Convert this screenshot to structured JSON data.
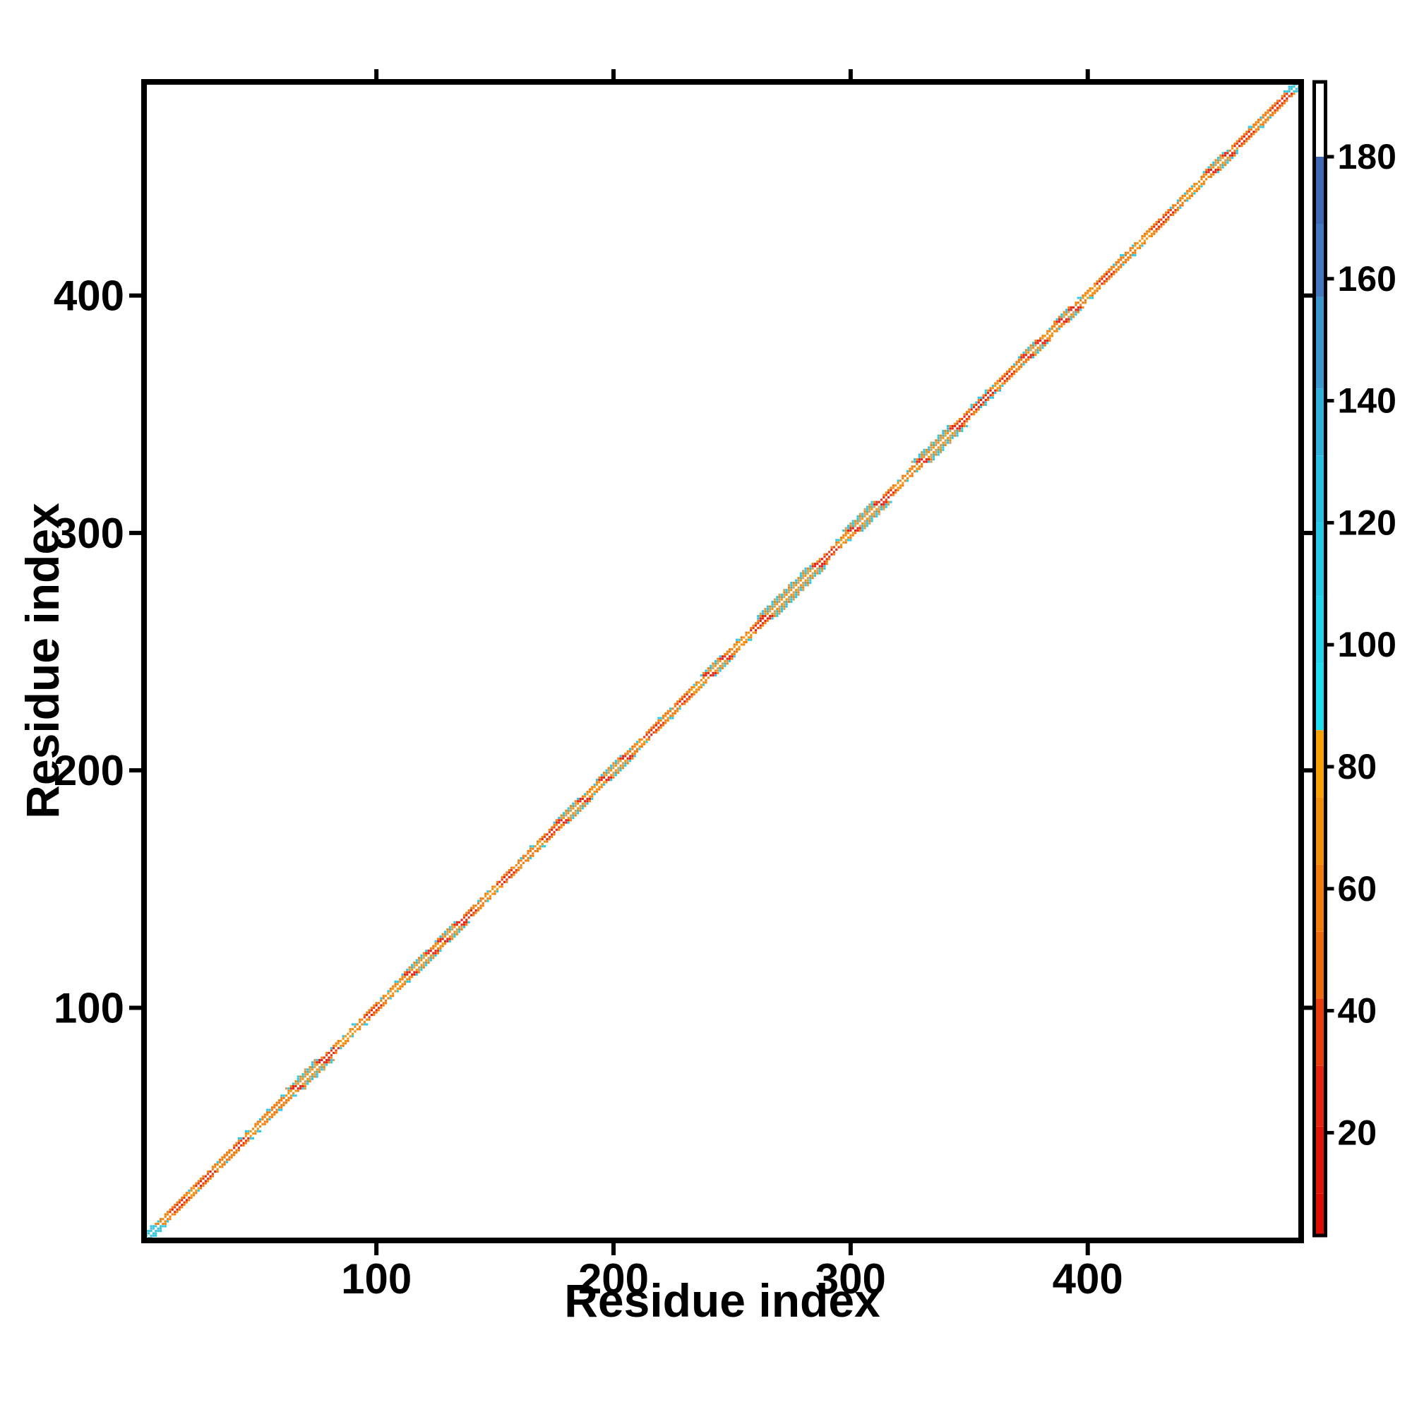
{
  "chart_data": {
    "type": "heatmap",
    "title": "",
    "xlabel": "Residue index",
    "ylabel": "Residue index",
    "x_ticks": [
      100,
      200,
      300,
      400
    ],
    "y_ticks": [
      100,
      200,
      300,
      400
    ],
    "axis_range": [
      2,
      490
    ],
    "grid": false,
    "legend": "none",
    "description": "Residue-residue contact map of a ~490 residue protein. Only near-diagonal contacts are populated: a thin braided band of small square markers runs corner to corner along the identity diagonal, colored by the colorbar value (approx. 2-192). The exact diagonal i=j is white. Wider dense 'blob' patches (helical/secondary-structure segments, olive-tan and teal mix) appear at intervals listed below; red runs mark low-value segments and cyan flecks mark high-value contacts at the band edge.",
    "colorbar": {
      "ticks": [
        20,
        40,
        60,
        80,
        100,
        120,
        140,
        160,
        180
      ],
      "range": [
        2,
        192
      ],
      "bands": [
        {
          "lo": 2,
          "hi": 10,
          "color": "#dd0d04"
        },
        {
          "lo": 10,
          "hi": 21,
          "color": "#e11507"
        },
        {
          "lo": 21,
          "hi": 31,
          "color": "#e52310"
        },
        {
          "lo": 31,
          "hi": 42,
          "color": "#e93d0e"
        },
        {
          "lo": 42,
          "hi": 53,
          "color": "#ec690d"
        },
        {
          "lo": 53,
          "hi": 64,
          "color": "#f07c0b"
        },
        {
          "lo": 64,
          "hi": 75,
          "color": "#f38e08"
        },
        {
          "lo": 75,
          "hi": 86,
          "color": "#f7a105"
        },
        {
          "lo": 86,
          "hi": 97,
          "color": "#1fdcee"
        },
        {
          "lo": 97,
          "hi": 108,
          "color": "#21d3ec"
        },
        {
          "lo": 108,
          "hi": 120,
          "color": "#25cae8"
        },
        {
          "lo": 120,
          "hi": 131,
          "color": "#2abfe2"
        },
        {
          "lo": 131,
          "hi": 142,
          "color": "#30b0da"
        },
        {
          "lo": 142,
          "hi": 157,
          "color": "#3b97cc"
        },
        {
          "lo": 157,
          "hi": 169,
          "color": "#4079c0"
        },
        {
          "lo": 169,
          "hi": 180,
          "color": "#3e68b4"
        },
        {
          "lo": 180,
          "hi": 192,
          "color": "#ffffff"
        }
      ]
    },
    "diagonal": {
      "seed": 7,
      "cyan_endcaps": [
        [
          2,
          8
        ],
        [
          486,
          490
        ]
      ],
      "blobs": [
        [
          66,
          78
        ],
        [
          114,
          124
        ],
        [
          128,
          136
        ],
        [
          178,
          188
        ],
        [
          196,
          206
        ],
        [
          240,
          248
        ],
        [
          264,
          287
        ],
        [
          301,
          313
        ],
        [
          330,
          345
        ],
        [
          374,
          381
        ],
        [
          389,
          395
        ],
        [
          452,
          460
        ]
      ],
      "red_runs": [
        [
          14,
          20
        ],
        [
          25,
          31
        ],
        [
          41,
          45
        ],
        [
          79,
          83
        ],
        [
          96,
          101
        ],
        [
          136,
          141
        ],
        [
          152,
          158
        ],
        [
          171,
          176
        ],
        [
          214,
          220
        ],
        [
          228,
          232
        ],
        [
          259,
          263
        ],
        [
          288,
          294
        ],
        [
          314,
          318
        ],
        [
          345,
          350
        ],
        [
          364,
          368
        ],
        [
          405,
          410
        ],
        [
          428,
          436
        ],
        [
          463,
          469
        ],
        [
          478,
          485
        ]
      ],
      "red_cyan_clusters": [
        [
          352,
          360
        ]
      ],
      "cyan_flecks": [
        10,
        23,
        35,
        45,
        48,
        53,
        57,
        63,
        83,
        88,
        93,
        104,
        107,
        111,
        145,
        149,
        163,
        168,
        190,
        194,
        209,
        212,
        222,
        226,
        236,
        255,
        297,
        308,
        311,
        322,
        326,
        362,
        371,
        386,
        391,
        399,
        413,
        417,
        421,
        437,
        440,
        443,
        446,
        461,
        471,
        475
      ]
    },
    "marker_colors": {
      "red": "#e62310",
      "red2": "#ee3a0c",
      "orange": "#f8920a",
      "orange2": "#f3830b",
      "orange3": "#ee7a10",
      "cyan": "#2bc7e3",
      "tan": "#cfa05a",
      "teal": "#57b0a8",
      "endcap": "#3fc3da"
    },
    "frame_color": "#000000",
    "background_color": "#ffffff"
  }
}
